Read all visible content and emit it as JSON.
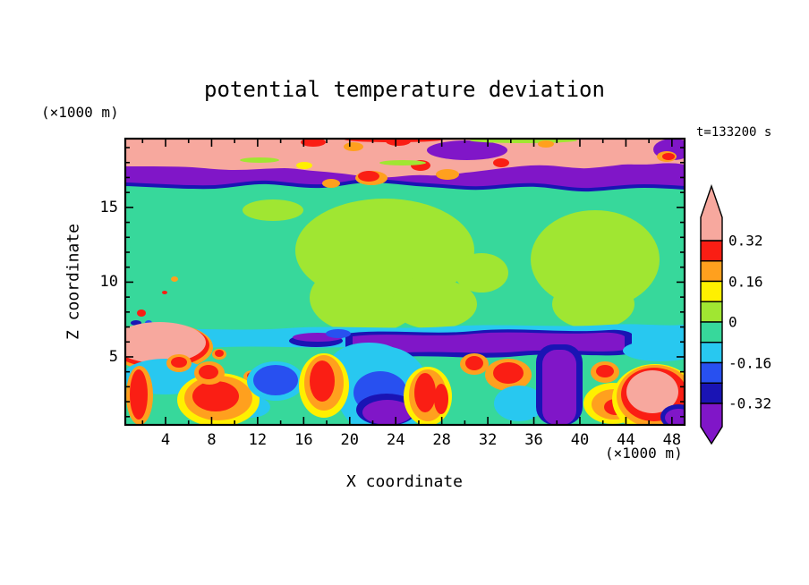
{
  "chart_data": {
    "type": "filled-contour",
    "title": "potential temperature deviation",
    "annotation": "t=133200 s",
    "axes": {
      "x_label": "X coordinate",
      "x_unit": "(×1000 m)",
      "z_label": "Z coordinate",
      "z_unit": "(×1000 m)",
      "x_tick_values": [
        4,
        8,
        12,
        16,
        20,
        24,
        28,
        32,
        36,
        40,
        44,
        48
      ],
      "x_minor_step": 2,
      "x_range": [
        0.5,
        49.1
      ],
      "z_tick_values": [
        5,
        10,
        15
      ],
      "z_minor_step": 1,
      "z_range": [
        0.45,
        19.6
      ]
    },
    "colorbar": {
      "tick_labels": [
        "0.32",
        "0.16",
        "0",
        "-0.16",
        "-0.32"
      ],
      "contour_levels": [
        -0.4,
        -0.32,
        -0.24,
        -0.16,
        -0.08,
        0,
        0.08,
        0.16,
        0.24,
        0.32,
        0.4
      ],
      "segment_colors_top_to_bottom": [
        "red",
        "orange",
        "yellow",
        "yellowgreen",
        "green",
        "cyan",
        "blue",
        "navy"
      ],
      "above_max_color": "pink",
      "below_min_color": "purple"
    },
    "palette": {
      "pink": "#f7a89e",
      "red": "#fa1e14",
      "orange": "#ffa01e",
      "yellow": "#fff000",
      "yellowgreen": "#a0e632",
      "green": "#37d89b",
      "cyan": "#28c8f0",
      "blue": "#2850f0",
      "navy": "#1a14b4",
      "purple": "#8016c8"
    },
    "field": {
      "description": "Vertical x-z cross-section of potential temperature deviation: warm (pink) layer near the top, cold (purple/navy) inversion band beneath it, near-zero (green) interior with weakly positive (yellow-green) plumes, a cold purple/cyan layer near z=5-6, and turbulent warm/cold convective cells below.",
      "shapes": [
        [
          "r",
          0,
          0,
          625,
          320,
          0,
          "green"
        ],
        [
          "p",
          "M0 18 H625 V57 C610 56 595 55 580 55 C560 55 540 58 520 59 C500 60 480 55 460 54 C440 53 420 56 400 57 C380 58 360 55 340 54 C320 53 300 50 280 49 C260 48 240 54 220 55 C200 56 180 52 160 51 C140 50 120 55 100 56 C70 57 30 54 0 53 Z",
          "navy"
        ],
        [
          "p",
          "M0 16 H625 V53 C610 52 595 51 580 51 C560 51 540 54 520 55 C500 56 480 51 460 50 C440 49 420 52 400 53 C380 54 360 51 340 50 C320 49 300 46 280 45 C260 44 240 50 220 51 C200 52 180 48 160 47 C140 46 120 51 100 52 C70 53 30 50 0 49 Z",
          "purple"
        ],
        [
          "p",
          "M0 0 H625 V29 C615 27 605 27 595 28 C575 30 565 28 555 29 C540 31 530 32 518 33 C505 34 490 31 472 30 C455 29 440 31 422 33 C405 35 392 37 380 38 C365 40 352 42 338 41 C322 40 310 42 298 43 C282 44 265 42 250 40 C235 38 222 37 210 36 C198 35 188 33 178 33 C160 33 140 35 122 35 C105 35 90 33 75 32 C55 31 30 31 0 31 Z",
          "pink"
        ],
        [
          "e",
          382,
          13,
          45,
          11,
          "purple"
        ],
        [
          "e",
          612,
          12,
          22,
          12,
          "purple"
        ],
        [
          "e",
          300,
          1,
          55,
          3,
          "red"
        ],
        [
          "e",
          445,
          2,
          60,
          3,
          "yellowgreen"
        ],
        [
          "e",
          210,
          4,
          14,
          5,
          "red"
        ],
        [
          "e",
          255,
          9,
          11,
          5,
          "orange"
        ],
        [
          "e",
          305,
          3,
          14,
          5,
          "red"
        ],
        [
          "e",
          275,
          44,
          18,
          8,
          "orange"
        ],
        [
          "e",
          272,
          42,
          12,
          6,
          "red"
        ],
        [
          "e",
          330,
          30,
          11,
          6,
          "red"
        ],
        [
          "e",
          360,
          40,
          13,
          6,
          "orange"
        ],
        [
          "e",
          230,
          50,
          10,
          5,
          "orange"
        ],
        [
          "e",
          420,
          27,
          9,
          5,
          "red"
        ],
        [
          "e",
          470,
          6,
          9,
          4,
          "orange"
        ],
        [
          "e",
          605,
          20,
          11,
          6,
          "orange"
        ],
        [
          "e",
          607,
          20,
          7,
          4,
          "red"
        ],
        [
          "e",
          200,
          30,
          9,
          4,
          "yellow"
        ],
        [
          "e",
          150,
          24,
          22,
          3,
          "yellowgreen"
        ],
        [
          "e",
          310,
          27,
          26,
          3,
          "yellowgreen"
        ],
        [
          "e",
          165,
          80,
          34,
          12,
          "yellowgreen"
        ],
        [
          "e",
          290,
          125,
          100,
          58,
          "yellowgreen"
        ],
        [
          "e",
          268,
          178,
          62,
          40,
          "yellowgreen"
        ],
        [
          "e",
          345,
          185,
          48,
          28,
          "yellowgreen"
        ],
        [
          "e",
          525,
          135,
          72,
          55,
          "yellowgreen"
        ],
        [
          "e",
          523,
          185,
          46,
          28,
          "yellowgreen"
        ],
        [
          "e",
          398,
          150,
          30,
          22,
          "yellowgreen"
        ],
        [
          "e",
          18,
          195,
          5,
          4,
          "red"
        ],
        [
          "e",
          12,
          206,
          6,
          3,
          "navy"
        ],
        [
          "e",
          26,
          206,
          4,
          3,
          "blue"
        ],
        [
          "e",
          55,
          157,
          4,
          3,
          "orange"
        ],
        [
          "e",
          44,
          172,
          3,
          2,
          "red"
        ],
        [
          "p",
          "M0 214 C60 210 120 216 180 212 C240 208 300 214 360 210 C420 206 480 212 540 208 C570 206 600 210 625 208 V228 C570 232 510 226 450 230 C390 234 330 228 270 232 C210 236 150 230 90 234 C60 236 30 232 0 234 Z",
          "cyan"
        ],
        [
          "p",
          "M246 218 C290 212 340 220 390 215 C440 210 490 218 540 214 C552 213 562 215 566 218 V240 C540 246 490 238 440 243 C390 248 340 240 290 245 C270 247 252 244 246 240 Z",
          "navy"
        ],
        [
          "p",
          "M254 221 C295 216 342 223 390 218 C436 214 484 220 530 217 C544 216 554 218 558 221 V236 C532 241 486 234 440 238 C394 242 348 236 302 240 C282 242 262 239 254 236 Z",
          "purple"
        ],
        [
          "e",
          213,
          226,
          30,
          7,
          "navy"
        ],
        [
          "e",
          215,
          222,
          28,
          5,
          "purple"
        ],
        [
          "e",
          238,
          218,
          14,
          5,
          "blue"
        ],
        [
          "e",
          40,
          233,
          58,
          27,
          "orange"
        ],
        [
          "e",
          39,
          231,
          55,
          25,
          "red"
        ],
        [
          "e",
          38,
          228,
          52,
          23,
          "pink"
        ],
        [
          "e",
          105,
          241,
          8,
          6,
          "orange"
        ],
        [
          "e",
          105,
          240,
          5,
          4,
          "red"
        ],
        [
          "e",
          288,
          282,
          52,
          50,
          "cyan"
        ],
        [
          "e",
          272,
          250,
          42,
          22,
          "cyan"
        ],
        [
          "e",
          285,
          284,
          30,
          24,
          "blue"
        ],
        [
          "e",
          292,
          303,
          34,
          18,
          "navy"
        ],
        [
          "e",
          293,
          306,
          28,
          14,
          "purple"
        ],
        [
          "e",
          45,
          266,
          48,
          20,
          "cyan"
        ],
        [
          "e",
          140,
          300,
          22,
          12,
          "cyan"
        ],
        [
          "e",
          142,
          266,
          10,
          7,
          "orange"
        ],
        [
          "e",
          142,
          265,
          6,
          4,
          "red"
        ],
        [
          "e",
          16,
          287,
          15,
          33,
          "orange"
        ],
        [
          "e",
          15,
          286,
          10,
          28,
          "red"
        ],
        [
          "e",
          104,
          292,
          46,
          30,
          "yellow"
        ],
        [
          "e",
          104,
          290,
          38,
          25,
          "orange"
        ],
        [
          "e",
          101,
          288,
          26,
          17,
          "red"
        ],
        [
          "e",
          94,
          262,
          17,
          13,
          "orange"
        ],
        [
          "e",
          93,
          261,
          11,
          8,
          "red"
        ],
        [
          "e",
          60,
          251,
          14,
          10,
          "orange"
        ],
        [
          "e",
          60,
          250,
          9,
          6,
          "red"
        ],
        [
          "e",
          168,
          271,
          32,
          22,
          "cyan"
        ],
        [
          "e",
          168,
          270,
          25,
          17,
          "blue"
        ],
        [
          "e",
          222,
          276,
          28,
          36,
          "yellow"
        ],
        [
          "e",
          222,
          273,
          22,
          31,
          "orange"
        ],
        [
          "e",
          220,
          271,
          14,
          23,
          "red"
        ],
        [
          "e",
          338,
          288,
          27,
          33,
          "yellow"
        ],
        [
          "e",
          338,
          287,
          21,
          29,
          "orange"
        ],
        [
          "e",
          335,
          284,
          12,
          22,
          "red"
        ],
        [
          "e",
          353,
          291,
          8,
          17,
          "red"
        ],
        [
          "e",
          390,
          252,
          16,
          12,
          "orange"
        ],
        [
          "e",
          390,
          251,
          10,
          8,
          "red"
        ],
        [
          "e",
          428,
          264,
          26,
          18,
          "orange"
        ],
        [
          "e",
          428,
          262,
          17,
          12,
          "red"
        ],
        [
          "e",
          440,
          296,
          28,
          20,
          "cyan"
        ],
        [
          "r",
          459,
          230,
          52,
          90,
          20,
          "navy"
        ],
        [
          "r",
          466,
          236,
          38,
          84,
          16,
          "purple"
        ],
        [
          "e",
          545,
          296,
          33,
          23,
          "yellow"
        ],
        [
          "e",
          546,
          297,
          25,
          17,
          "orange"
        ],
        [
          "e",
          548,
          300,
          13,
          9,
          "red"
        ],
        [
          "e",
          536,
          261,
          16,
          12,
          "orange"
        ],
        [
          "e",
          536,
          260,
          10,
          7,
          "red"
        ],
        [
          "e",
          598,
          237,
          42,
          12,
          "cyan"
        ],
        [
          "e",
          592,
          291,
          48,
          39,
          "yellow"
        ],
        [
          "e",
          592,
          288,
          43,
          35,
          "orange"
        ],
        [
          "e",
          591,
          286,
          37,
          30,
          "red"
        ],
        [
          "e",
          589,
          283,
          29,
          24,
          "pink"
        ],
        [
          "e",
          618,
          311,
          20,
          14,
          "navy"
        ],
        [
          "e",
          618,
          312,
          15,
          10,
          "purple"
        ]
      ]
    }
  }
}
